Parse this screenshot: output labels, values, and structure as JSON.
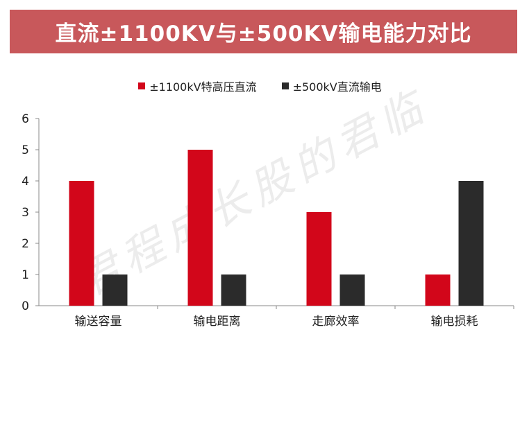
{
  "title": "直流±1100KV与±500KV输电能力对比",
  "watermark": "君程成长股的君临",
  "legend": [
    {
      "label": "±1100kV特高压直流",
      "color": "#d2061a"
    },
    {
      "label": "±500kV直流输电",
      "color": "#2b2b2b"
    }
  ],
  "chart_data": {
    "type": "bar",
    "categories": [
      "输送容量",
      "输电距离",
      "走廊效率",
      "输电损耗"
    ],
    "series": [
      {
        "name": "±1100kV特高压直流",
        "values": [
          4,
          5,
          3,
          1
        ],
        "color": "#d2061a"
      },
      {
        "name": "±500kV直流输电",
        "values": [
          1,
          1,
          1,
          4
        ],
        "color": "#2b2b2b"
      }
    ],
    "ylim": [
      0,
      6
    ],
    "yticks": [
      "0",
      "1",
      "2",
      "3",
      "4",
      "5",
      "6"
    ],
    "grid": false,
    "legend_position": "top"
  }
}
